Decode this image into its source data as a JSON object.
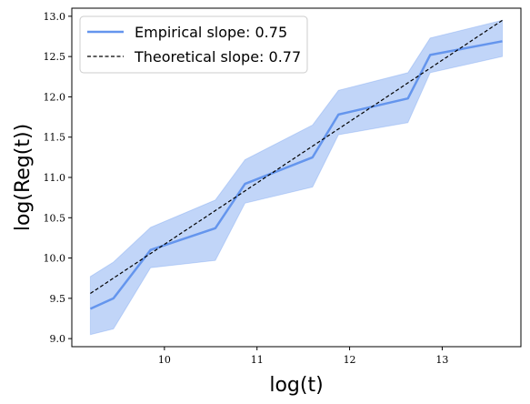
{
  "chart_data": {
    "type": "line",
    "xlabel": "log(t)",
    "ylabel": "log(Reg(t))",
    "xlim": [
      9.0,
      13.85
    ],
    "ylim": [
      8.9,
      13.1
    ],
    "xticks": [
      10,
      11,
      12,
      13
    ],
    "yticks": [
      9.0,
      9.5,
      10.0,
      10.5,
      11.0,
      11.5,
      12.0,
      12.5,
      13.0
    ],
    "xtick_labels": [
      "10",
      "11",
      "12",
      "13"
    ],
    "ytick_labels": [
      "9.0",
      "9.5",
      "10.0",
      "10.5",
      "11.0",
      "11.5",
      "12.0",
      "12.5",
      "13.0"
    ],
    "grid": false,
    "legend_position": "top-left",
    "series": [
      {
        "name": "Empirical slope: 0.75",
        "style": "solid",
        "color": "#6495ED",
        "x": [
          9.2,
          9.45,
          9.85,
          10.55,
          10.87,
          11.6,
          11.88,
          12.63,
          12.87,
          13.65
        ],
        "y": [
          9.37,
          9.5,
          10.1,
          10.37,
          10.92,
          11.25,
          11.78,
          11.98,
          12.52,
          12.69
        ],
        "band_upper": [
          9.77,
          9.95,
          10.38,
          10.72,
          11.22,
          11.65,
          12.08,
          12.3,
          12.73,
          12.95
        ],
        "band_lower": [
          9.05,
          9.12,
          9.88,
          9.97,
          10.68,
          10.88,
          11.53,
          11.68,
          12.3,
          12.5
        ]
      },
      {
        "name": "Theoretical slope: 0.77",
        "style": "dashed",
        "color": "#000000",
        "x": [
          9.2,
          13.65
        ],
        "y": [
          9.56,
          12.95
        ]
      }
    ]
  },
  "colors": {
    "band_fill": "#6495ED",
    "empirical_line": "#6495ED",
    "theoretical_line": "#000000"
  }
}
